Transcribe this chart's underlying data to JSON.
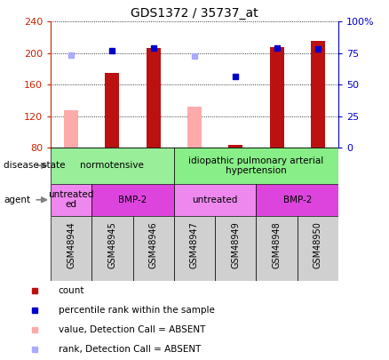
{
  "title": "GDS1372 / 35737_at",
  "samples": [
    "GSM48944",
    "GSM48945",
    "GSM48946",
    "GSM48947",
    "GSM48949",
    "GSM48948",
    "GSM48950"
  ],
  "bar_values": [
    127,
    175,
    207,
    132,
    84,
    208,
    215
  ],
  "bar_colors": [
    "#ffaaaa",
    "#bb1111",
    "#bb1111",
    "#ffaaaa",
    "#bb1111",
    "#bb1111",
    "#bb1111"
  ],
  "rank_values": [
    197,
    203,
    206,
    196,
    170,
    207,
    205
  ],
  "rank_colors": [
    "#aaaaff",
    "#0000cc",
    "#0000cc",
    "#aaaaff",
    "#0000cc",
    "#0000cc",
    "#0000cc"
  ],
  "ylim_left": [
    80,
    240
  ],
  "ylim_right": [
    0,
    100
  ],
  "yticks_left": [
    80,
    120,
    160,
    200,
    240
  ],
  "yticks_right": [
    0,
    25,
    50,
    75,
    100
  ],
  "ytick_labels_left": [
    "80",
    "120",
    "160",
    "200",
    "240"
  ],
  "ytick_labels_right": [
    "0",
    "25",
    "50",
    "75",
    "100%"
  ],
  "left_axis_color": "#cc2200",
  "right_axis_color": "#0000cc",
  "grid_color": "#000000",
  "bar_width": 0.35,
  "disease_groups": [
    {
      "label": "normotensive",
      "start": 0,
      "end": 3,
      "color": "#99ee99"
    },
    {
      "label": "idiopathic pulmonary arterial\nhypertension",
      "start": 3,
      "end": 7,
      "color": "#88ee88"
    }
  ],
  "agent_groups": [
    {
      "label": "untreated\ned",
      "start": 0,
      "end": 1,
      "color": "#ee88ee"
    },
    {
      "label": "BMP-2",
      "start": 1,
      "end": 3,
      "color": "#dd44dd"
    },
    {
      "label": "untreated",
      "start": 3,
      "end": 5,
      "color": "#ee88ee"
    },
    {
      "label": "BMP-2",
      "start": 5,
      "end": 7,
      "color": "#dd44dd"
    }
  ],
  "legend_items": [
    {
      "label": "count",
      "color": "#bb1111"
    },
    {
      "label": "percentile rank within the sample",
      "color": "#0000cc"
    },
    {
      "label": "value, Detection Call = ABSENT",
      "color": "#ffaaaa"
    },
    {
      "label": "rank, Detection Call = ABSENT",
      "color": "#aaaaff"
    }
  ]
}
